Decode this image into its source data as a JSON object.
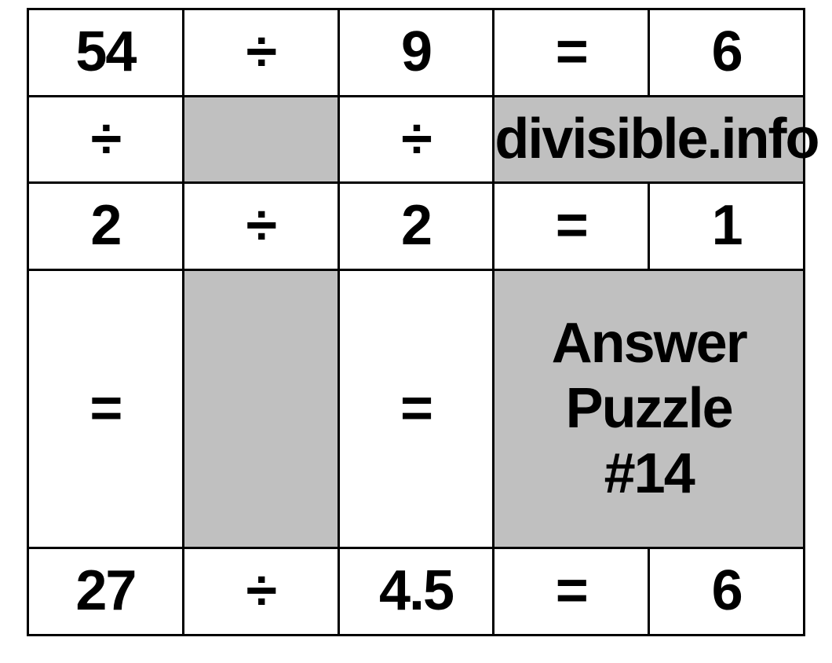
{
  "grid": {
    "r1": {
      "c1": "54",
      "c2": "÷",
      "c3": "9",
      "c4": "=",
      "c5": "6"
    },
    "r2": {
      "c1": "÷",
      "c2": "",
      "c3": "÷",
      "label": "divisible.info"
    },
    "r3": {
      "c1": "2",
      "c2": "÷",
      "c3": "2",
      "c4": "=",
      "c5": "1"
    },
    "r4": {
      "c1": "=",
      "c2": "",
      "c3": "=",
      "label_line1": "Answer Puzzle",
      "label_line2": "#14"
    },
    "r5": {
      "c1": "27",
      "c2": "÷",
      "c3": "4.5",
      "c4": "=",
      "c5": "6"
    }
  },
  "style": {
    "green_color": "#0f7a0f",
    "black_color": "#000000",
    "shaded_bg": "#c0c0c0",
    "border_color": "#000000",
    "font_size_cell": 72,
    "font_size_label": 42,
    "green_cells": [
      "r1c1",
      "r1c3",
      "r3c1",
      "r3c3",
      "r5c3"
    ]
  }
}
